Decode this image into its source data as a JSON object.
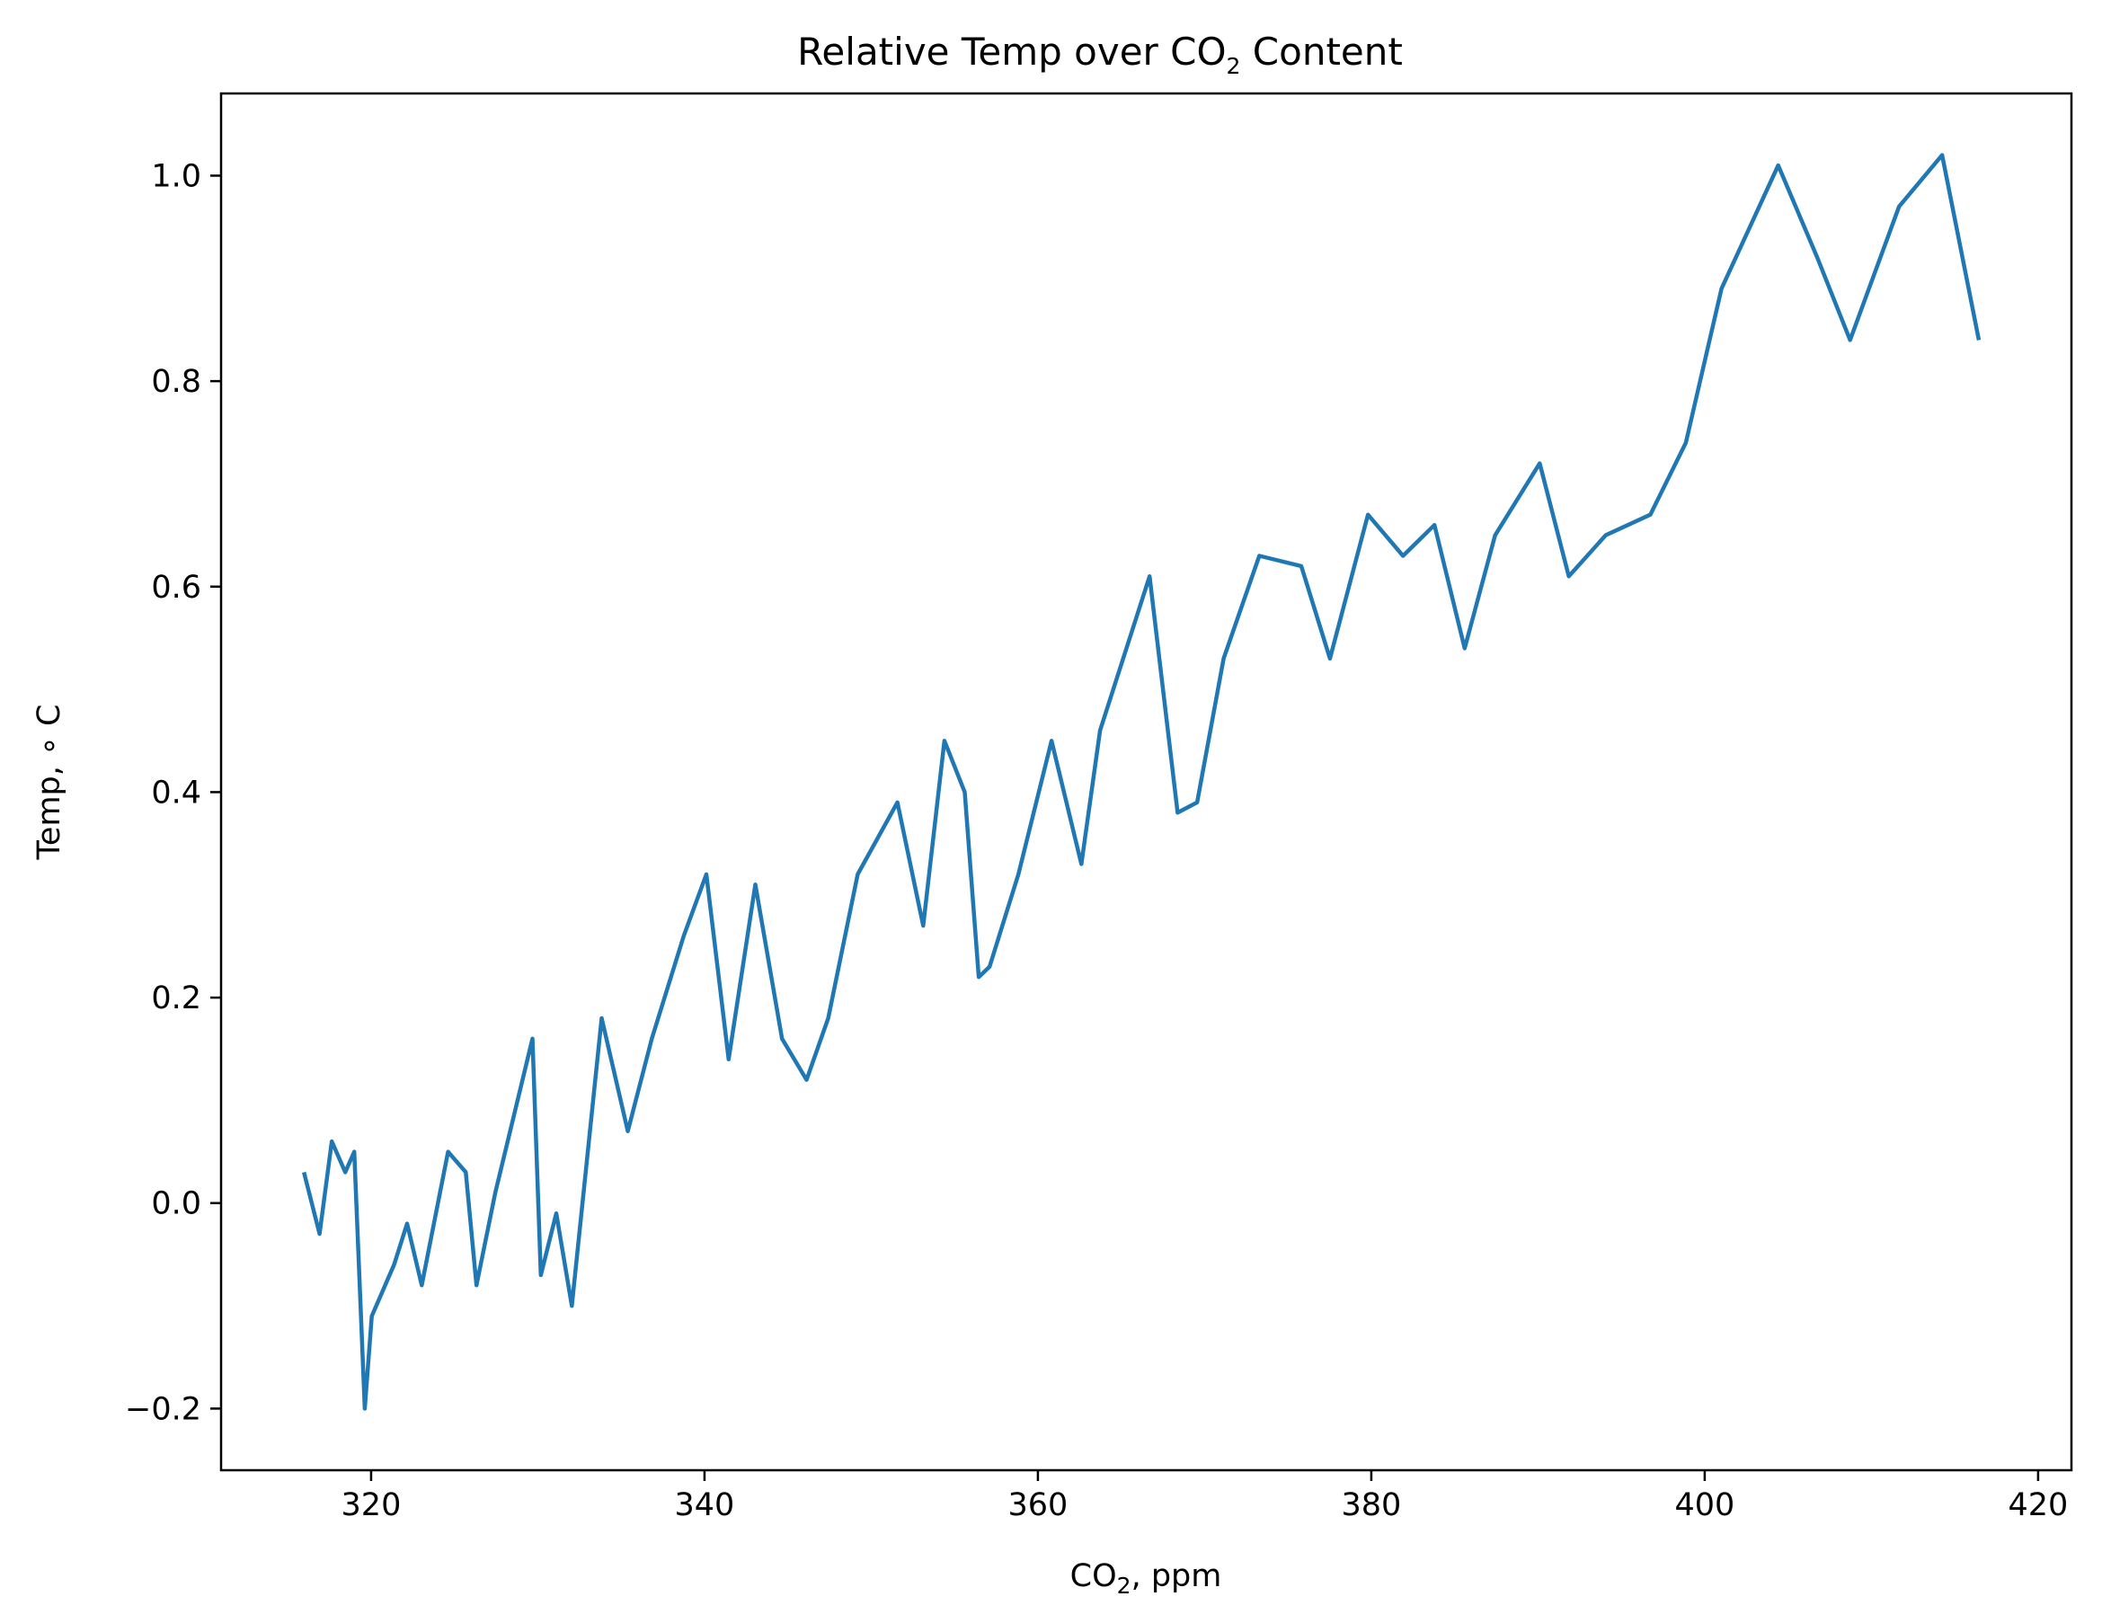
{
  "chart_data": {
    "type": "line",
    "title": {
      "pre": "Relative Temp over CO",
      "sub": "2",
      "post": " Content"
    },
    "xlabel": {
      "pre": "CO",
      "sub": "2",
      "post": ", ppm"
    },
    "ylabel": "Temp, ∘ C",
    "xlim": [
      311,
      422
    ],
    "ylim": [
      -0.26,
      1.08
    ],
    "xticks": [
      320,
      340,
      360,
      380,
      400,
      420
    ],
    "yticks": [
      -0.2,
      0.0,
      0.2,
      0.4,
      0.6,
      0.8,
      1.0
    ],
    "xtick_labels": [
      "320",
      "340",
      "360",
      "380",
      "400",
      "420"
    ],
    "ytick_labels": [
      "−0.2",
      "0.0",
      "0.2",
      "0.4",
      "0.6",
      "0.8",
      "1.0"
    ],
    "grid": false,
    "color": "#1f77b4",
    "x": [
      315.97,
      316.91,
      317.64,
      318.45,
      318.99,
      319.62,
      320.04,
      321.38,
      322.16,
      323.04,
      324.62,
      325.68,
      326.32,
      327.45,
      329.68,
      330.18,
      331.11,
      332.04,
      333.83,
      335.4,
      336.84,
      338.75,
      340.11,
      341.45,
      343.05,
      344.65,
      346.12,
      347.42,
      349.19,
      351.57,
      353.12,
      354.39,
      355.61,
      356.45,
      357.1,
      358.83,
      360.82,
      362.61,
      363.73,
      366.7,
      368.38,
      369.55,
      371.14,
      373.28,
      375.8,
      377.52,
      379.8,
      381.9,
      383.79,
      385.6,
      387.43,
      390.1,
      391.85,
      394.06,
      396.74,
      398.87,
      401.01,
      404.41,
      406.76,
      408.72,
      411.66,
      414.24,
      416.45
    ],
    "y": [
      0.03,
      -0.03,
      0.06,
      0.03,
      0.05,
      -0.2,
      -0.11,
      -0.06,
      -0.02,
      -0.08,
      0.05,
      0.03,
      -0.08,
      0.01,
      0.16,
      -0.07,
      -0.01,
      -0.1,
      0.18,
      0.07,
      0.16,
      0.26,
      0.32,
      0.14,
      0.31,
      0.16,
      0.12,
      0.18,
      0.32,
      0.39,
      0.27,
      0.45,
      0.4,
      0.22,
      0.23,
      0.32,
      0.45,
      0.33,
      0.46,
      0.61,
      0.38,
      0.39,
      0.53,
      0.63,
      0.62,
      0.53,
      0.67,
      0.63,
      0.66,
      0.54,
      0.65,
      0.72,
      0.61,
      0.65,
      0.67,
      0.74,
      0.89,
      1.01,
      0.92,
      0.84,
      0.97,
      1.02,
      0.84
    ]
  }
}
